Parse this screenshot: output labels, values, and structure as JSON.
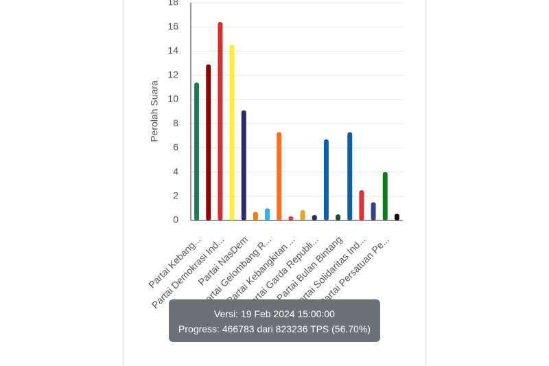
{
  "chart_data": {
    "type": "bar",
    "y_label": "Perolah Suara",
    "categories": [
      "Partai Kebang...",
      null,
      "Partai Demokrasi Ind...",
      null,
      "Partai NasDem",
      null,
      "Partai Gelombang R...",
      null,
      "Partai Kebangkitan ...",
      null,
      "Partai Garda Republi...",
      null,
      "Partai Bulan Bintang",
      null,
      "Partai Solidaritas Ind...",
      null,
      "Partai Persatuan Pe...",
      null
    ],
    "values": [
      11.4,
      12.9,
      16.4,
      14.5,
      9.1,
      0.7,
      1.0,
      7.3,
      0.35,
      0.85,
      0.45,
      6.7,
      0.5,
      7.3,
      2.5,
      1.5,
      4.0,
      0.55
    ],
    "colors": [
      "#1e7b55",
      "#8b0000",
      "#d32f2f",
      "#ffeb3b",
      "#2b2d6b",
      "#f57c00",
      "#29b6f6",
      "#ff6d1f",
      "#e53935",
      "#f0a030",
      "#1a2d5a",
      "#0d5fb0",
      "#1b4d2e",
      "#0d5fa0",
      "#e03030",
      "#33408a",
      "#0a7a1a",
      "#111111"
    ],
    "ylim": [
      0,
      18
    ],
    "yticks": [
      0,
      2,
      4,
      6,
      8,
      10,
      12,
      14,
      16,
      18
    ],
    "grid": true
  },
  "tooltip": {
    "version": "Versi: 19 Feb 2024 15:00:00",
    "progress": "Progress: 466783 dari 823236 TPS (56.70%)"
  }
}
